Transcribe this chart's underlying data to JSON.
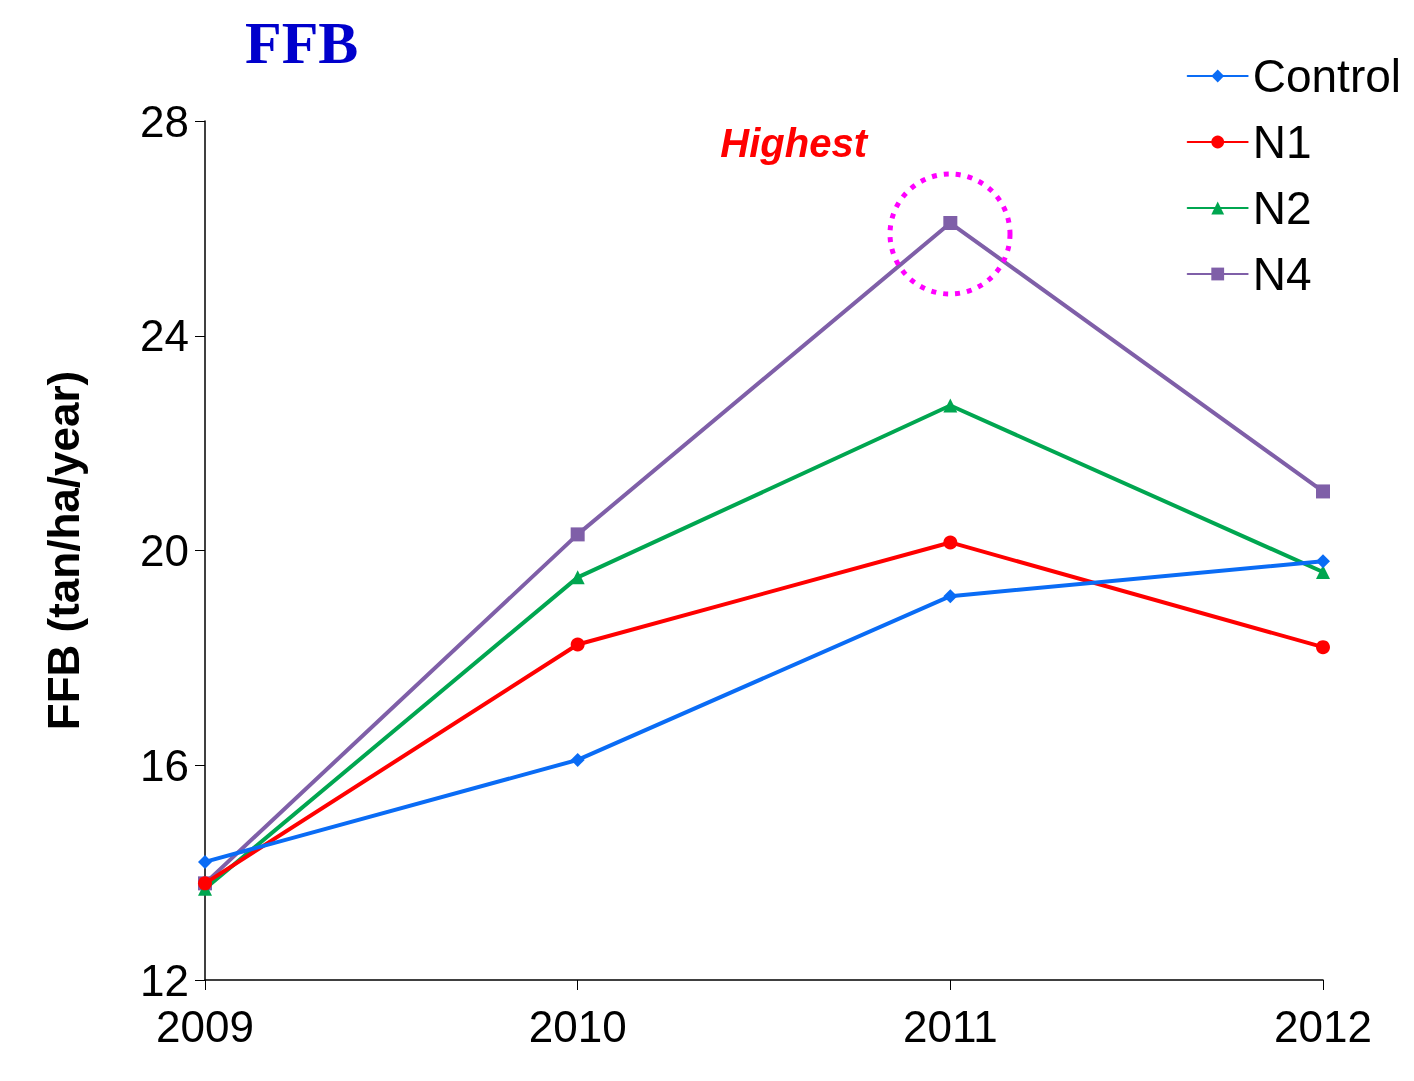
{
  "chart_data": {
    "type": "line",
    "title": "FFB",
    "ylabel": "FFB (tan/ha/year)",
    "categories": [
      "2009",
      "2010",
      "2011",
      "2012"
    ],
    "series": [
      {
        "name": "Control",
        "color": "#0a6cf5",
        "marker": "diamond",
        "values": [
          14.2,
          16.1,
          19.15,
          19.8
        ]
      },
      {
        "name": "N1",
        "color": "#ff0000",
        "marker": "circle",
        "values": [
          13.8,
          18.25,
          20.15,
          18.2
        ]
      },
      {
        "name": "N2",
        "color": "#00a650",
        "marker": "triangle",
        "values": [
          13.7,
          19.5,
          22.7,
          19.6
        ]
      },
      {
        "name": "N4",
        "color": "#7f5fa8",
        "marker": "square",
        "values": [
          13.8,
          20.3,
          26.1,
          21.1
        ]
      }
    ],
    "ylim": [
      12,
      28
    ],
    "yticks": [
      12,
      16,
      20,
      24,
      28
    ],
    "grid": false,
    "legend": "top right",
    "line_style": "solid",
    "annotations": [
      {
        "text": "Highest",
        "x": "2011",
        "y": 26.1
      }
    ]
  }
}
